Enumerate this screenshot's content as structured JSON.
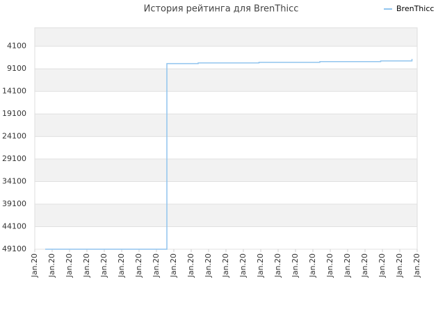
{
  "chart_data": {
    "type": "step-line",
    "title": "История рейтинга для BrenThicc",
    "x": [
      0.6,
      7.6,
      9.4,
      12.9,
      16.4,
      19.9,
      21.6,
      21.7
    ],
    "series": [
      {
        "name": "BrenThicc",
        "color": "#90c4ee",
        "values": [
          49100,
          7950,
          7800,
          7650,
          7500,
          7350,
          7350,
          6900
        ]
      }
    ],
    "xlim": [
      0,
      22
    ],
    "xticks": [
      {
        "value": 0,
        "label": "Jan.20"
      },
      {
        "value": 1,
        "label": "Jan.20"
      },
      {
        "value": 2,
        "label": "Jan.20"
      },
      {
        "value": 3,
        "label": "Jan.20"
      },
      {
        "value": 4,
        "label": "Jan.20"
      },
      {
        "value": 5,
        "label": "Jan.20"
      },
      {
        "value": 6,
        "label": "Jan.20"
      },
      {
        "value": 7,
        "label": "Jan.20"
      },
      {
        "value": 8,
        "label": "Jan.20"
      },
      {
        "value": 9,
        "label": "Jan.20"
      },
      {
        "value": 10,
        "label": "Jan.20"
      },
      {
        "value": 11,
        "label": "Jan.20"
      },
      {
        "value": 12,
        "label": "Jan.20"
      },
      {
        "value": 13,
        "label": "Jan.20"
      },
      {
        "value": 14,
        "label": "Jan.20"
      },
      {
        "value": 15,
        "label": "Jan.20"
      },
      {
        "value": 16,
        "label": "Jan.20"
      },
      {
        "value": 17,
        "label": "Jan.20"
      },
      {
        "value": 18,
        "label": "Jan.20"
      },
      {
        "value": 19,
        "label": "Jan.20"
      },
      {
        "value": 20,
        "label": "Jan.20"
      },
      {
        "value": 21,
        "label": "Jan.20"
      },
      {
        "value": 22,
        "label": "Jan.20"
      }
    ],
    "ylim": [
      49100,
      0
    ],
    "yticks": [
      4100,
      9100,
      14100,
      19100,
      24100,
      29100,
      34100,
      39100,
      44100,
      49100
    ],
    "grid": true,
    "legend": "top-right"
  }
}
